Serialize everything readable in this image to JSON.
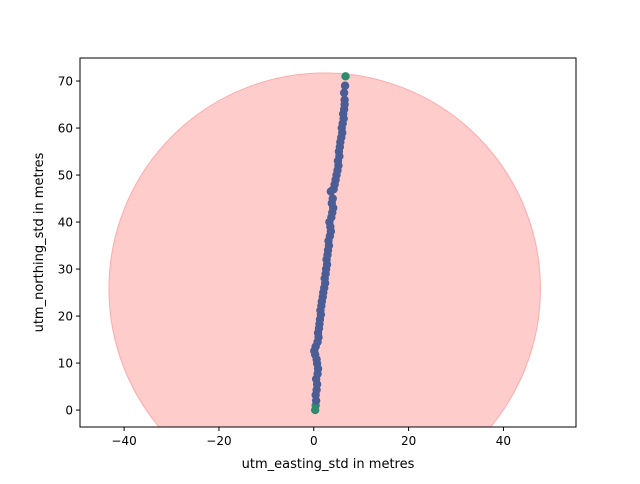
{
  "chart_data": {
    "type": "scatter",
    "title": "",
    "xlabel": "utm_easting_std in metres",
    "ylabel": "utm_northing_std in metres",
    "xlim": [
      -49.3,
      55.3
    ],
    "ylim": [
      -3.6,
      74.9
    ],
    "xticks": [
      {
        "value": -40,
        "label": "−40"
      },
      {
        "value": -20,
        "label": "−20"
      },
      {
        "value": 0,
        "label": "0"
      },
      {
        "value": 20,
        "label": "20"
      },
      {
        "value": 40,
        "label": "40"
      }
    ],
    "yticks": [
      {
        "value": 0,
        "label": "0"
      },
      {
        "value": 10,
        "label": "10"
      },
      {
        "value": 20,
        "label": "20"
      },
      {
        "value": 30,
        "label": "30"
      },
      {
        "value": 40,
        "label": "40"
      },
      {
        "value": 50,
        "label": "50"
      },
      {
        "value": 60,
        "label": "60"
      },
      {
        "value": 70,
        "label": "70"
      }
    ],
    "grid": false,
    "colors": {
      "points": "#4a5d94",
      "points_start": "#2e8b6e",
      "circle_fill": "#ffcccc",
      "circle_edge": "#ffaaaa"
    },
    "circle": {
      "center": [
        2.3,
        25.8
      ],
      "radius": 45.5
    },
    "series": [
      {
        "x": [
          0.3,
          0.4,
          0.5,
          0.4,
          0.6,
          0.7,
          0.5,
          0.8,
          0.9,
          0.7,
          0.6,
          0.3,
          0.1,
          0.4,
          0.8,
          1.0,
          0.9,
          1.1,
          1.2,
          1.3,
          1.5,
          1.4,
          1.6,
          1.7,
          1.9,
          2.0,
          2.2,
          2.4,
          2.3,
          2.5,
          2.6,
          2.8,
          2.7,
          2.9,
          3.0,
          3.2,
          3.1,
          3.4,
          3.6,
          3.5,
          3.3,
          3.7,
          3.9,
          4.1,
          3.8,
          4.0,
          3.6,
          4.2,
          4.4,
          4.6,
          4.8,
          5.0,
          5.2,
          5.1,
          5.4,
          5.3,
          5.5,
          5.6,
          5.8,
          6.0,
          5.9,
          6.1,
          6.3,
          6.2,
          6.4,
          6.5,
          6.5,
          6.4,
          6.6,
          6.7
        ],
        "y": [
          0.0,
          1.0,
          2.0,
          3.2,
          4.3,
          5.5,
          6.6,
          7.7,
          8.8,
          9.9,
          10.8,
          11.8,
          12.6,
          13.5,
          14.5,
          15.5,
          16.4,
          17.4,
          18.3,
          19.3,
          20.3,
          21.2,
          22.2,
          23.1,
          24.1,
          25.0,
          26.0,
          27.0,
          28.0,
          29.0,
          30.0,
          31.0,
          32.0,
          33.0,
          34.0,
          35.0,
          36.0,
          37.0,
          38.0,
          39.0,
          40.0,
          41.0,
          42.0,
          43.0,
          44.0,
          45.0,
          46.5,
          47.0,
          48.0,
          49.0,
          50.0,
          51.0,
          52.0,
          53.0,
          54.0,
          55.0,
          56.0,
          57.0,
          58.0,
          59.0,
          60.0,
          61.0,
          62.0,
          63.0,
          64.0,
          65.0,
          66.0,
          67.5,
          69.0,
          71.0
        ]
      }
    ]
  }
}
